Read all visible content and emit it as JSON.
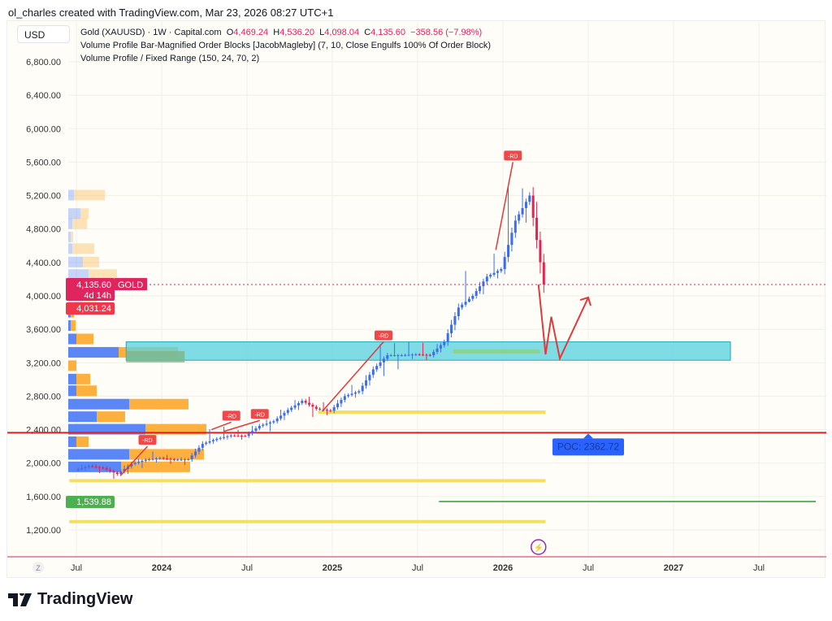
{
  "credit": "ol_charles created with TradingView.com, Mar 23, 2026 08:27 UTC+1",
  "currency": "USD",
  "legend": {
    "symbol": "Gold (XAUUSD) · 1W · Capital.com",
    "o_label": "O",
    "o": "4,469.24",
    "h_label": "H",
    "h": "4,536.20",
    "l_label": "L",
    "l": "4,098.04",
    "c_label": "C",
    "c": "4,135.60",
    "change": "−358.56 (−7.98%)",
    "indicator1": "Volume Profile Bar-Magnified Order Blocks [JacobMagleby] (7, 10, Close Engulfs 100% Of Order Block)",
    "indicator2": "Volume Profile / Fixed Range (150, 24, 70, 2)"
  },
  "price_tag": {
    "price": "4,135.60",
    "symbol": "GOLD",
    "countdown": "4d 14h",
    "level2": "4,031.24",
    "green_level": "1,539.88"
  },
  "poc_label": "POC: 2362.72",
  "time_axis_z": "Z",
  "brand": "TradingView",
  "colors": {
    "up": "#3b6cf0",
    "down": "#e8224f",
    "box": "#5fd3e0",
    "poc": "#e02020",
    "green": "#4caf50",
    "yellow": "#f5dc50",
    "vp_blue": "#5b86f5",
    "vp_orange": "#fdb03e"
  },
  "chart_data": {
    "type": "candlestick",
    "interval": "1W",
    "y_ticks": [
      "6,800.00",
      "6,400.00",
      "6,000.00",
      "5,600.00",
      "5,200.00",
      "4,800.00",
      "4,400.00",
      "4,000.00",
      "3,600.00",
      "3,200.00",
      "2,800.00",
      "2,400.00",
      "2,000.00",
      "1,600.00",
      "1,200.00"
    ],
    "y_tick_values": [
      6800,
      6400,
      6000,
      5600,
      5200,
      4800,
      4400,
      4000,
      3600,
      3200,
      2800,
      2400,
      2000,
      1600,
      1200
    ],
    "ylim": [
      1200,
      6800
    ],
    "x_ticks": [
      {
        "label": "Jul",
        "month": 0,
        "bold": false
      },
      {
        "label": "2024",
        "month": 6,
        "bold": true
      },
      {
        "label": "Jul",
        "month": 12,
        "bold": false
      },
      {
        "label": "2025",
        "month": 18,
        "bold": true
      },
      {
        "label": "Jul",
        "month": 24,
        "bold": false
      },
      {
        "label": "2026",
        "month": 30,
        "bold": true
      },
      {
        "label": "Jul",
        "month": 36,
        "bold": false
      },
      {
        "label": "2027",
        "month": 42,
        "bold": true
      },
      {
        "label": "Jul",
        "month": 48,
        "bold": false
      }
    ],
    "monthly_ohlc": [
      [
        "2023-07",
        1915,
        1985,
        1900,
        1965
      ],
      [
        "2023-08",
        1965,
        1975,
        1885,
        1940
      ],
      [
        "2023-09",
        1940,
        1950,
        1810,
        1870
      ],
      [
        "2023-10",
        1870,
        2010,
        1830,
        1990
      ],
      [
        "2023-11",
        1990,
        2060,
        1930,
        2040
      ],
      [
        "2023-12",
        2040,
        2140,
        2010,
        2060
      ],
      [
        "2024-01",
        2060,
        2090,
        2000,
        2040
      ],
      [
        "2024-02",
        2040,
        2060,
        1985,
        2045
      ],
      [
        "2024-03",
        2045,
        2235,
        2040,
        2230
      ],
      [
        "2024-04",
        2230,
        2430,
        2220,
        2290
      ],
      [
        "2024-05",
        2290,
        2450,
        2280,
        2330
      ],
      [
        "2024-06",
        2330,
        2390,
        2290,
        2325
      ],
      [
        "2024-07",
        2325,
        2485,
        2320,
        2445
      ],
      [
        "2024-08",
        2445,
        2530,
        2365,
        2500
      ],
      [
        "2024-09",
        2500,
        2685,
        2470,
        2635
      ],
      [
        "2024-10",
        2635,
        2790,
        2600,
        2745
      ],
      [
        "2024-11",
        2745,
        2800,
        2540,
        2650
      ],
      [
        "2024-12",
        2650,
        2725,
        2580,
        2625
      ],
      [
        "2025-01",
        2625,
        2815,
        2610,
        2800
      ],
      [
        "2025-02",
        2800,
        2955,
        2770,
        2860
      ],
      [
        "2025-03",
        2860,
        3150,
        2830,
        3120
      ],
      [
        "2025-04",
        3120,
        3500,
        2970,
        3290
      ],
      [
        "2025-05",
        3290,
        3435,
        3120,
        3290
      ],
      [
        "2025-06",
        3290,
        3450,
        3250,
        3300
      ],
      [
        "2025-07",
        3300,
        3440,
        3240,
        3290
      ],
      [
        "2025-08",
        3290,
        3480,
        3270,
        3450
      ],
      [
        "2025-09",
        3450,
        3870,
        3430,
        3860
      ],
      [
        "2025-10",
        3860,
        4380,
        3880,
        4000
      ],
      [
        "2025-11",
        4000,
        4250,
        3930,
        4230
      ],
      [
        "2025-12",
        4230,
        4550,
        4180,
        4320
      ],
      [
        "2026-01",
        4320,
        5600,
        4300,
        4900
      ],
      [
        "2026-02",
        4900,
        5420,
        4750,
        5200
      ],
      [
        "2026-03",
        5200,
        5300,
        4098,
        4135.6
      ]
    ],
    "volume_profile": [
      {
        "price": 5200,
        "buy": 7,
        "sell": 38,
        "faded": true
      },
      {
        "price": 4980,
        "buy": 15,
        "sell": 10,
        "faded": true
      },
      {
        "price": 4860,
        "buy": 5,
        "sell": 18,
        "faded": true
      },
      {
        "price": 4700,
        "buy": 3,
        "sell": 3,
        "faded": true
      },
      {
        "price": 4560,
        "buy": 5,
        "sell": 27,
        "faded": true
      },
      {
        "price": 4400,
        "buy": 18,
        "sell": 20,
        "faded": true
      },
      {
        "price": 4250,
        "buy": 25,
        "sell": 35,
        "faded": true
      },
      {
        "price": 4100,
        "buy": 15,
        "sell": 40,
        "faded": true
      },
      {
        "price": 3950,
        "buy": 18,
        "sell": 17,
        "faded": true
      },
      {
        "price": 3800,
        "buy": 3,
        "sell": 4
      },
      {
        "price": 3640,
        "buy": 3,
        "sell": 6
      },
      {
        "price": 3480,
        "buy": 10,
        "sell": 21
      },
      {
        "price": 3320,
        "buy": 62,
        "sell": 73
      },
      {
        "price": 3160,
        "buy": 0,
        "sell": 10
      },
      {
        "price": 3000,
        "buy": 10,
        "sell": 17
      },
      {
        "price": 2860,
        "buy": 10,
        "sell": 25
      },
      {
        "price": 2700,
        "buy": 75,
        "sell": 73
      },
      {
        "price": 2550,
        "buy": 35,
        "sell": 35
      },
      {
        "price": 2400,
        "buy": 95,
        "sell": 75
      },
      {
        "price": 2250,
        "buy": 10,
        "sell": 15
      },
      {
        "price": 2100,
        "buy": 75,
        "sell": 92
      },
      {
        "price": 1950,
        "buy": 65,
        "sell": 85
      }
    ],
    "order_block_zone": {
      "low": 3230,
      "high": 3450,
      "start_month": 3.5,
      "end_month": 46
    },
    "poc": 2362.72,
    "levels": [
      {
        "price": 2610,
        "color": "yellow",
        "start_month": 17,
        "end_month": 33
      },
      {
        "price": 1790,
        "color": "yellow",
        "start_month": -0.5,
        "end_month": 33
      },
      {
        "price": 1300,
        "color": "yellow",
        "start_month": -0.5,
        "end_month": 33
      },
      {
        "price": 1539.88,
        "color": "green",
        "start_month": 25.5,
        "end_month": 52
      }
    ],
    "rd_labels": [
      {
        "text": "-RD",
        "from": [
          3.1,
          1850
        ],
        "to": [
          5,
          2200
        ]
      },
      {
        "text": "-RD",
        "from": [
          9.5,
          2400
        ],
        "to": [
          10.9,
          2490
        ]
      },
      {
        "text": "-RD",
        "from": [
          10.4,
          2380
        ],
        "to": [
          12.9,
          2510
        ]
      },
      {
        "text": "-RD",
        "from": [
          17.3,
          2620
        ],
        "to": [
          21.6,
          3450
        ]
      },
      {
        "text": "-RD",
        "from": [
          29.5,
          4550
        ],
        "to": [
          30.7,
          5600
        ]
      }
    ],
    "projection": [
      [
        32.5,
        4135.6
      ],
      [
        33,
        3300
      ],
      [
        33.4,
        3750
      ],
      [
        34,
        3250
      ],
      [
        36,
        3980
      ]
    ]
  }
}
